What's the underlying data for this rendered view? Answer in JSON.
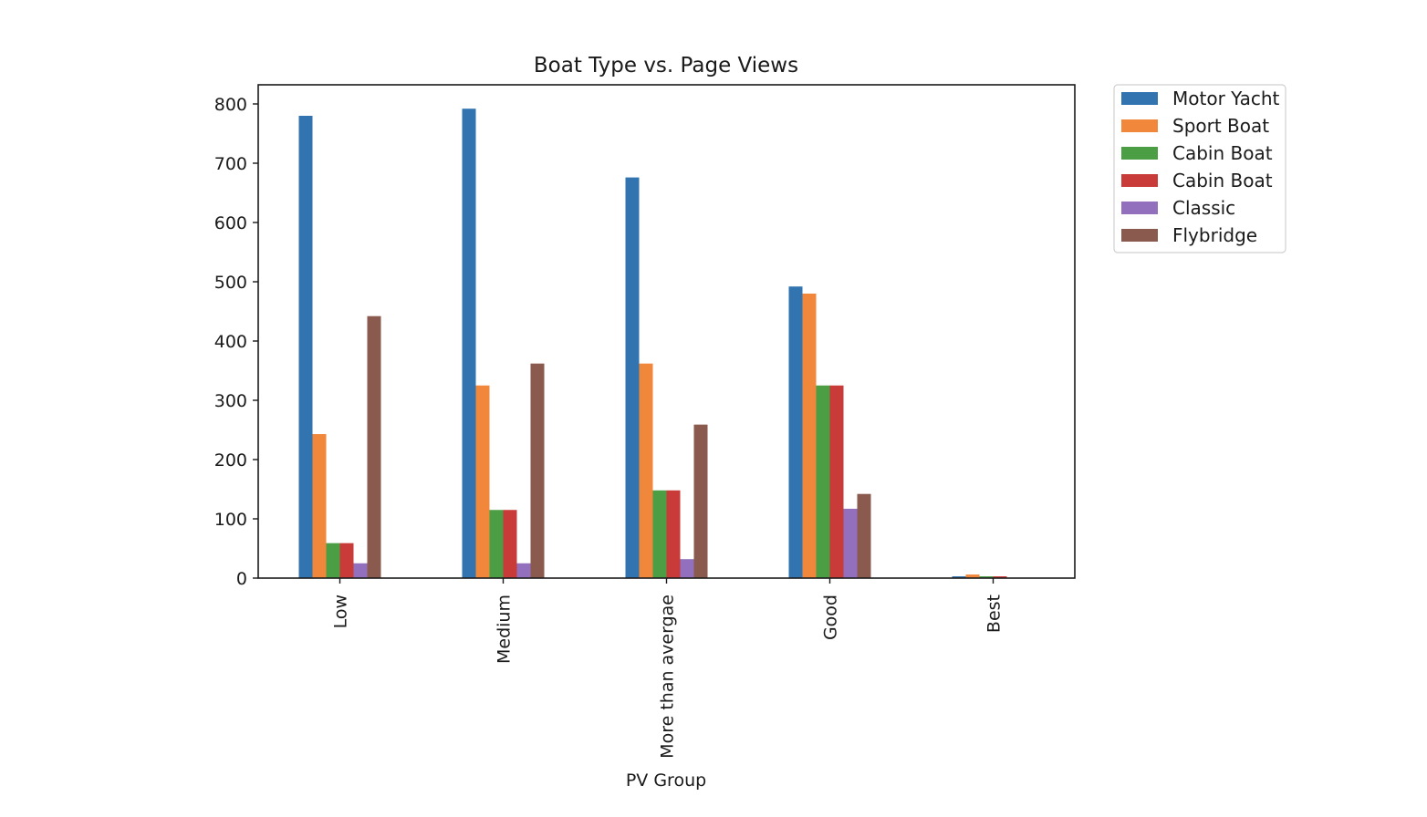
{
  "chart_data": {
    "type": "bar",
    "title": "Boat Type vs. Page Views",
    "xlabel": "PV Group",
    "ylabel": "",
    "ylim": [
      0,
      830
    ],
    "yticks": [
      0,
      100,
      200,
      300,
      400,
      500,
      600,
      700,
      800
    ],
    "categories": [
      "Low",
      "Medium",
      "More than avergae",
      "Good",
      "Best"
    ],
    "series": [
      {
        "name": "Motor Yacht",
        "color": "#3274b0",
        "values": [
          780,
          792,
          676,
          492,
          3
        ]
      },
      {
        "name": "Sport Boat",
        "color": "#f0873a",
        "values": [
          243,
          325,
          362,
          480,
          6
        ]
      },
      {
        "name": "Cabin Boat",
        "color": "#4c9e44",
        "values": [
          59,
          115,
          148,
          325,
          3
        ]
      },
      {
        "name": "Cabin Boat",
        "color": "#c93b38",
        "values": [
          59,
          115,
          148,
          325,
          3
        ]
      },
      {
        "name": "Classic",
        "color": "#9370bd",
        "values": [
          25,
          25,
          32,
          117,
          0
        ]
      },
      {
        "name": "Flybridge",
        "color": "#8a5a4e",
        "values": [
          442,
          362,
          259,
          142,
          0
        ]
      }
    ],
    "grid": false,
    "legend_position": "outside-top-right"
  }
}
